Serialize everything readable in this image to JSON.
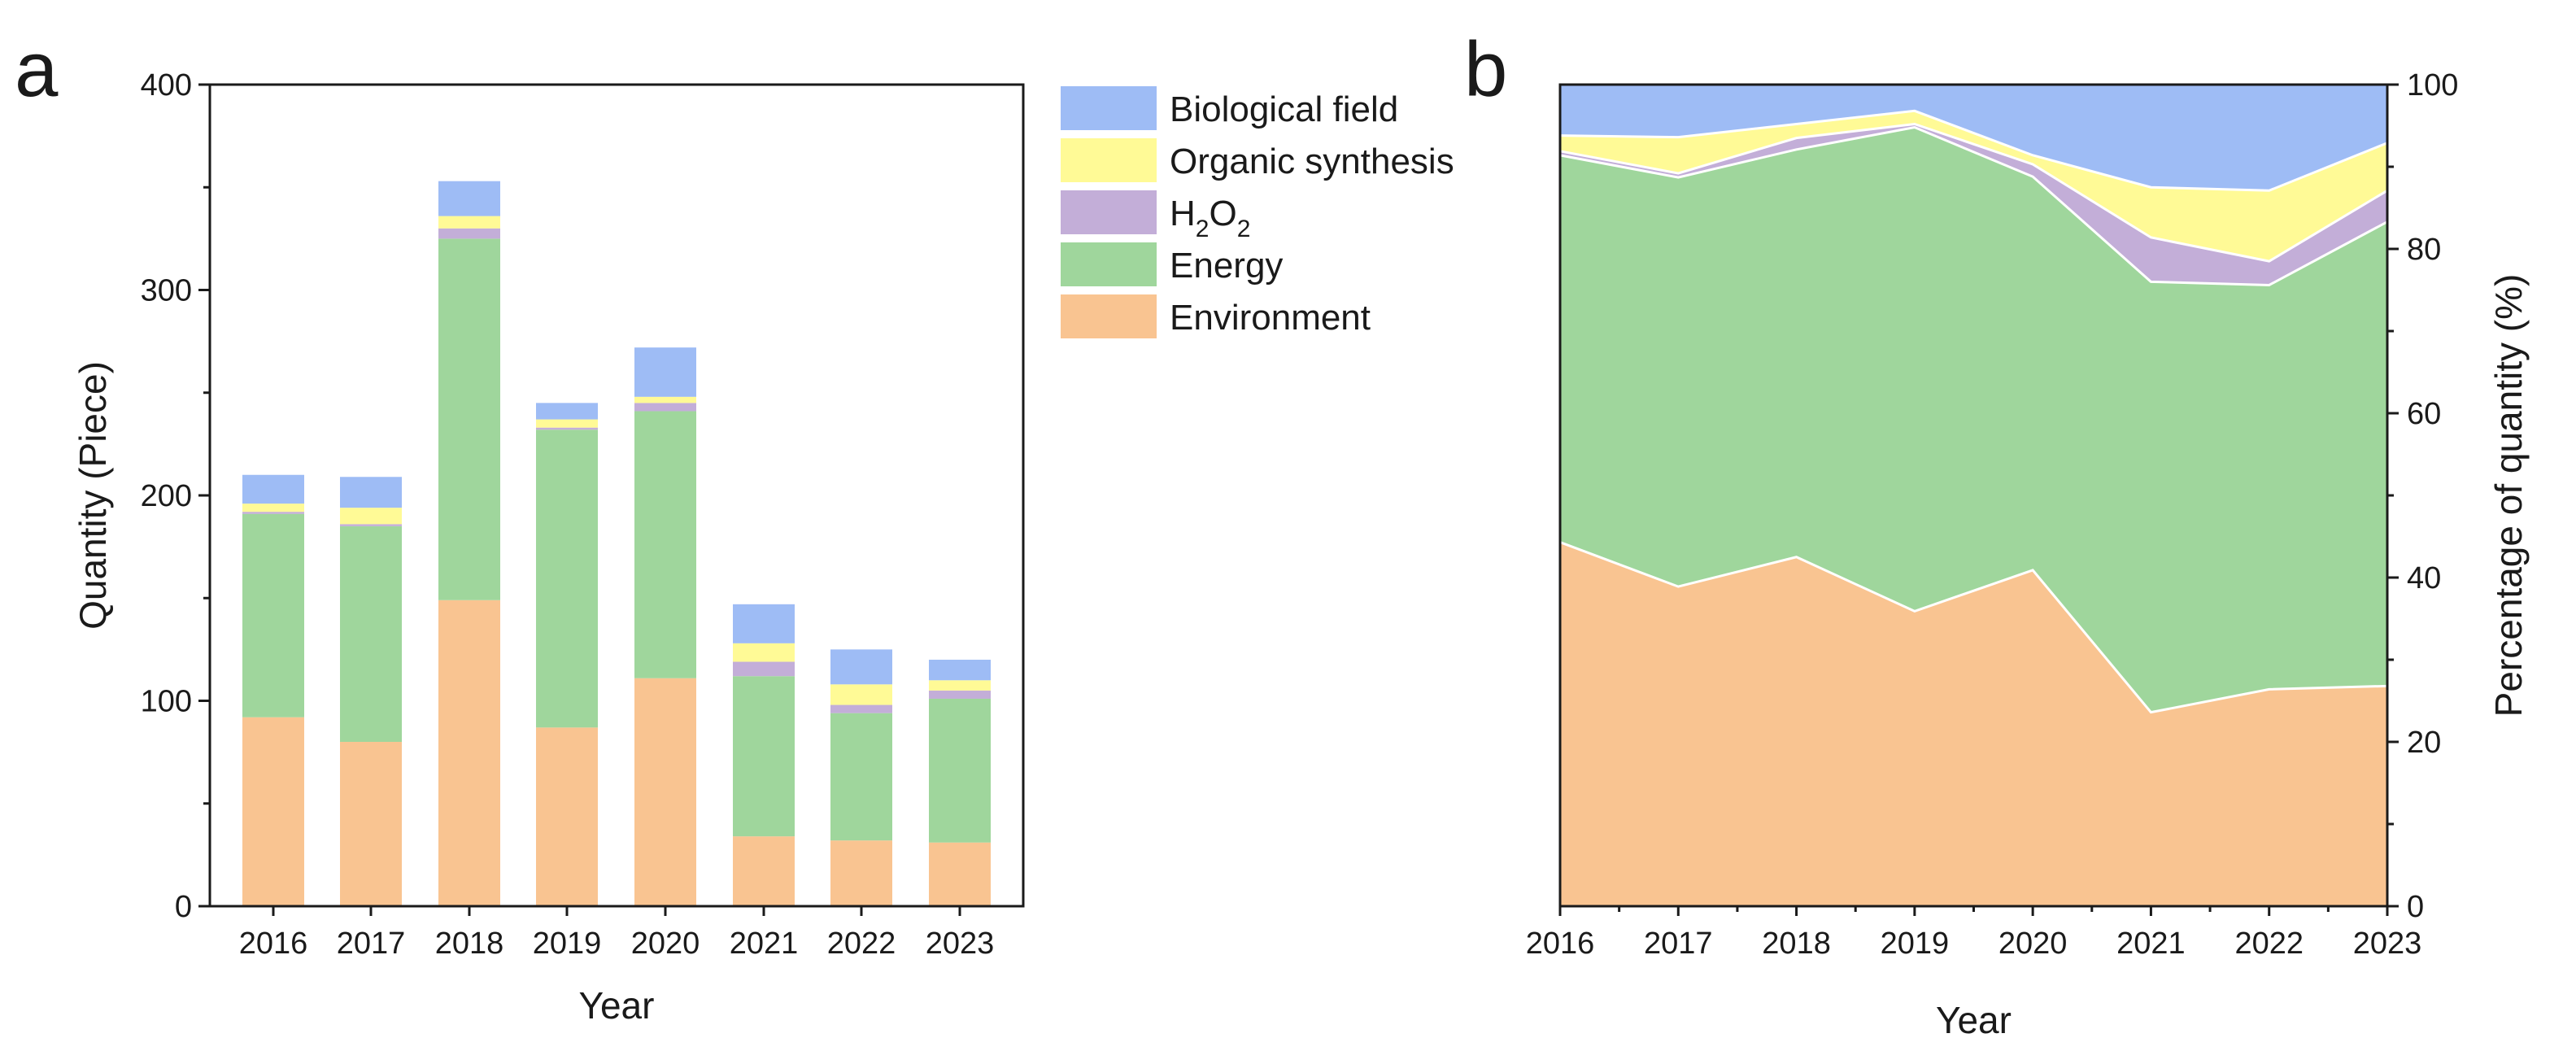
{
  "chart_data": [
    {
      "panel": "a",
      "type": "bar",
      "stacked": true,
      "categories": [
        "2016",
        "2017",
        "2018",
        "2019",
        "2020",
        "2021",
        "2022",
        "2023"
      ],
      "series": [
        {
          "name": "Environment",
          "color": "#F9C491",
          "values": [
            92,
            80,
            149,
            87,
            111,
            34,
            32,
            31
          ]
        },
        {
          "name": "Energy",
          "color": "#9FD69C",
          "values": [
            99,
            105,
            176,
            145,
            130,
            78,
            62,
            70
          ]
        },
        {
          "name": "H2O2",
          "color": "#C3AED8",
          "values": [
            1,
            1,
            5,
            1,
            4,
            7,
            4,
            4
          ]
        },
        {
          "name": "Organic synthesis",
          "color": "#FFFA96",
          "values": [
            4,
            8,
            6,
            4,
            3,
            9,
            10,
            5
          ]
        },
        {
          "name": "Biological field",
          "color": "#9EBCF5",
          "values": [
            14,
            15,
            17,
            8,
            24,
            19,
            17,
            10
          ]
        }
      ],
      "xlabel": "Year",
      "ylabel": "Quantity (Piece)",
      "ylim": [
        0,
        400
      ],
      "yticks": [
        "0",
        "100",
        "200",
        "300",
        "400"
      ],
      "legend": {
        "position": "right",
        "entries": [
          "Biological field",
          "Organic synthesis",
          "H2O2",
          "Energy",
          "Environment"
        ]
      }
    },
    {
      "panel": "b",
      "type": "area",
      "stacked": true,
      "x": [
        "2016",
        "2017",
        "2018",
        "2019",
        "2020",
        "2021",
        "2022",
        "2023"
      ],
      "series": [
        {
          "name": "Environment",
          "color": "#F9C491",
          "values": [
            44.3,
            38.9,
            42.5,
            35.9,
            40.9,
            23.6,
            26.4,
            26.8
          ]
        },
        {
          "name": "Energy",
          "color": "#9FD69C",
          "values": [
            47.1,
            49.8,
            49.6,
            58.9,
            47.9,
            52.4,
            49.2,
            56.5
          ]
        },
        {
          "name": "H2O2",
          "color": "#C3AED8",
          "values": [
            0.5,
            0.5,
            1.4,
            0.4,
            1.5,
            5.4,
            2.9,
            3.8
          ]
        },
        {
          "name": "Organic synthesis",
          "color": "#FFFA96",
          "values": [
            1.9,
            4.4,
            1.7,
            1.6,
            1.1,
            6.1,
            8.6,
            5.8
          ]
        },
        {
          "name": "Biological field",
          "color": "#9EBCF5",
          "values": [
            6.2,
            6.4,
            4.8,
            3.2,
            8.6,
            12.5,
            12.9,
            7.1
          ]
        }
      ],
      "xlabel": "Year",
      "ylabel": "Percentage of quantity (%)",
      "ylim": [
        0,
        100
      ],
      "yticks": [
        "0",
        "20",
        "40",
        "60",
        "80",
        "100"
      ]
    }
  ],
  "panels": {
    "a": "a",
    "b": "b"
  },
  "legend_h2o2": {
    "h": "H",
    "sub1": "2",
    "o": "O",
    "sub2": "2"
  }
}
